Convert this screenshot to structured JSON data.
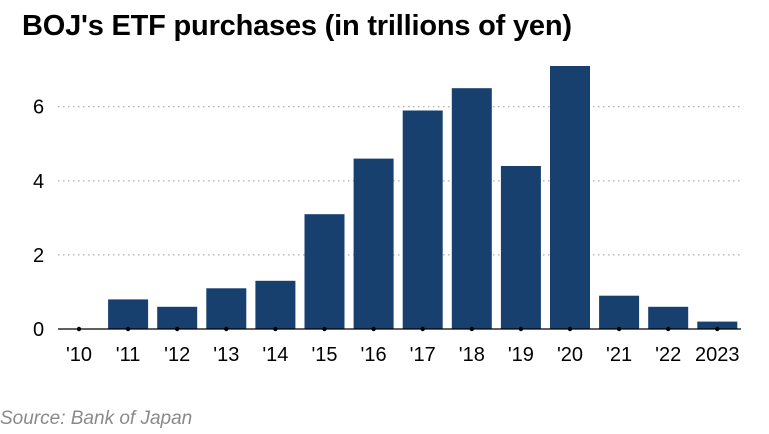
{
  "chart_data": {
    "type": "bar",
    "title": "BOJ's ETF purchases (in trillions of yen)",
    "source": "Source: Bank of Japan",
    "categories": [
      "'10",
      "'11",
      "'12",
      "'13",
      "'14",
      "'15",
      "'16",
      "'17",
      "'18",
      "'19",
      "'20",
      "'21",
      "'22",
      "2023"
    ],
    "values": [
      0.0,
      0.8,
      0.6,
      1.1,
      1.3,
      3.1,
      4.6,
      5.9,
      6.5,
      4.4,
      7.1,
      0.9,
      0.6,
      0.2
    ],
    "yticks": [
      "0",
      "2",
      "4",
      "6"
    ],
    "ylim": [
      0,
      7.1
    ],
    "grid": true,
    "xlabel": "",
    "ylabel": "",
    "bar_color": "#17406f",
    "grid_color": "#9a9a9a"
  }
}
